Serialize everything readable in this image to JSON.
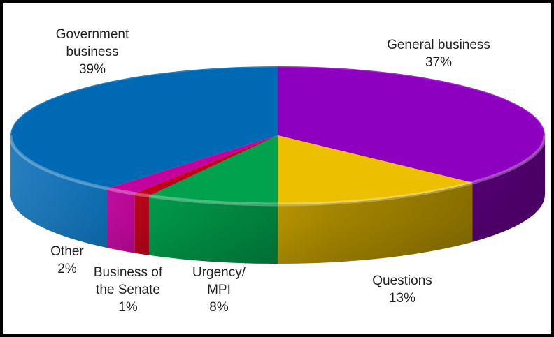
{
  "frame": {
    "background_color": "#FFFFFF",
    "border_color": "#000000"
  },
  "chart_data": {
    "type": "pie",
    "style": "3d",
    "title": "",
    "legend_position": "none",
    "data_labels": "category name and percentage, outside slices",
    "start_angle_deg": 0,
    "direction": "clockwise",
    "units": "%",
    "total": 100,
    "categories": [
      "General business",
      "Questions",
      "Urgency/MPI",
      "Business of the Senate",
      "Other",
      "Government business"
    ],
    "values": [
      37,
      13,
      8,
      1,
      2,
      39
    ],
    "segments": [
      {
        "label": "General business",
        "value": 37,
        "pct_label": "37%",
        "color": "#8E00C0",
        "label_lines": [
          "General business",
          "37%"
        ]
      },
      {
        "label": "Questions",
        "value": 13,
        "pct_label": "13%",
        "color": "#ECC000",
        "label_lines": [
          "Questions",
          "13%"
        ]
      },
      {
        "label": "Urgency/MPI",
        "value": 8,
        "pct_label": "8%",
        "color": "#00A24D",
        "label_lines": [
          "Urgency/",
          "MPI",
          "8%"
        ]
      },
      {
        "label": "Business of the Senate",
        "value": 1,
        "pct_label": "1%",
        "color": "#C00018",
        "label_lines": [
          "Business of",
          "the Senate",
          "1%"
        ]
      },
      {
        "label": "Other",
        "value": 2,
        "pct_label": "2%",
        "color": "#C4009E",
        "label_lines": [
          "Other",
          "2%"
        ]
      },
      {
        "label": "Government business",
        "value": 39,
        "pct_label": "39%",
        "color": "#0069B4",
        "label_lines": [
          "Government",
          "business",
          "39%"
        ]
      }
    ]
  }
}
